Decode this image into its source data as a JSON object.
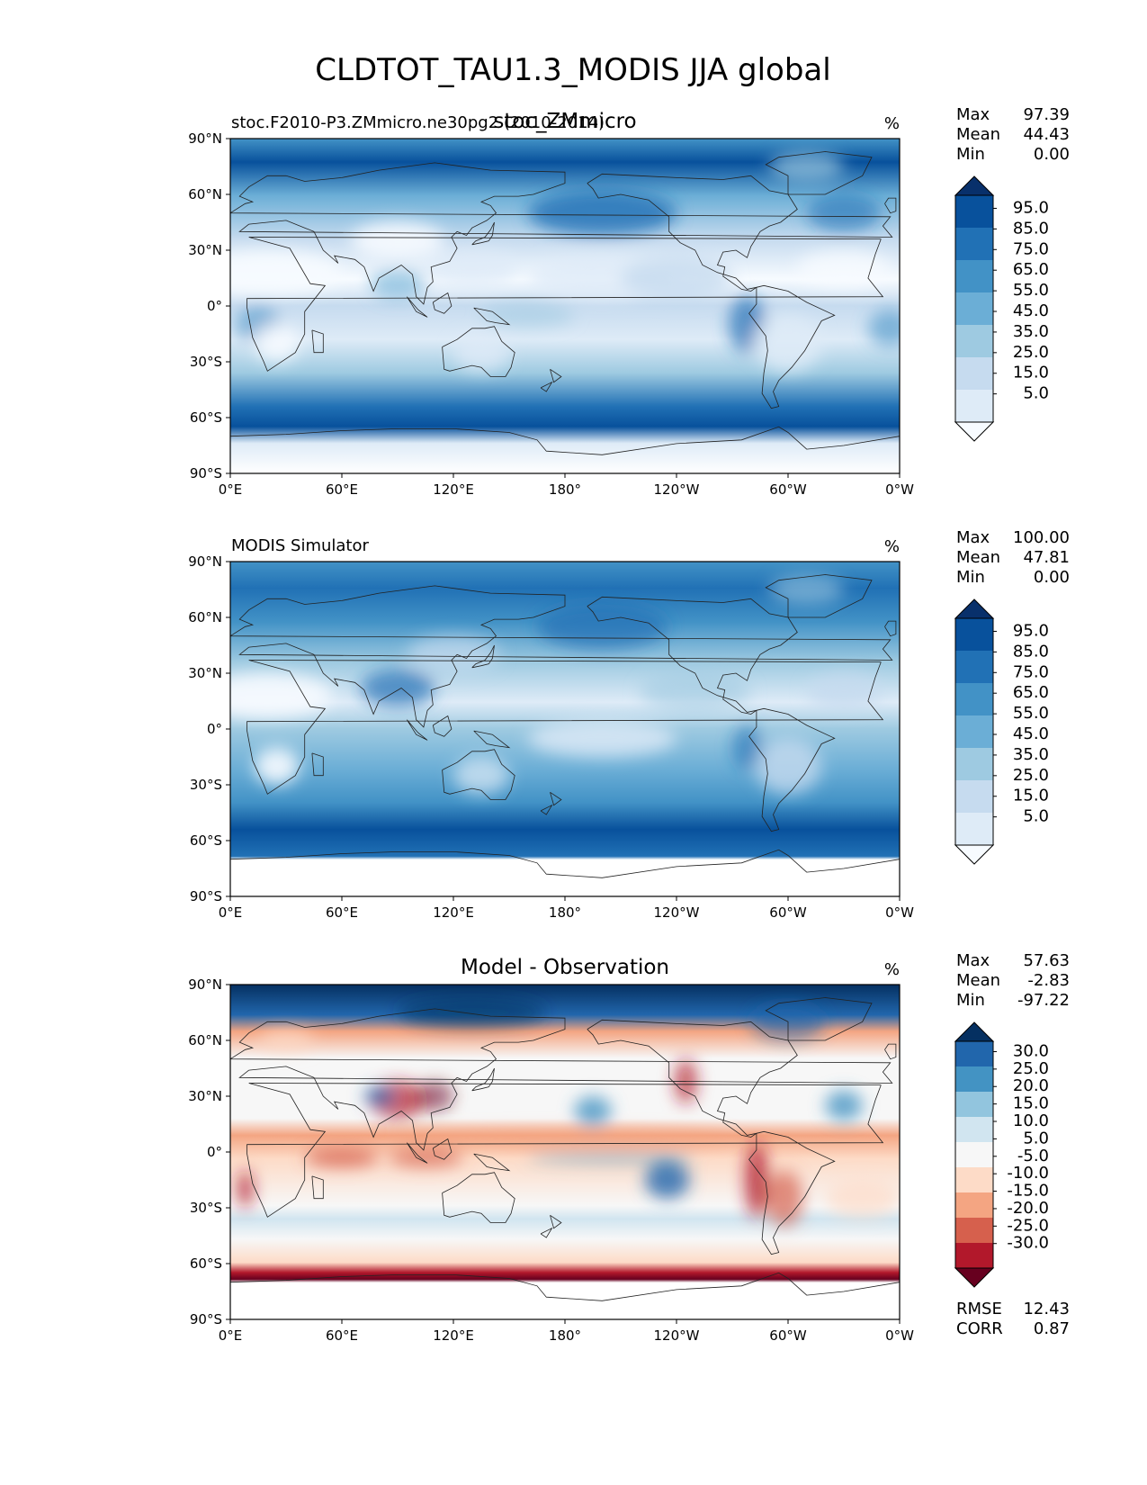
{
  "title": "CLDTOT_TAU1.3_MODIS JJA global",
  "colors": {
    "blues": [
      "#f7fbff",
      "#deebf7",
      "#c6dbef",
      "#9ecae1",
      "#6baed6",
      "#4292c6",
      "#2171b5",
      "#08519c",
      "#08306b"
    ],
    "diverging": [
      "#67001f",
      "#b2182b",
      "#d6604d",
      "#f4a582",
      "#fddbc7",
      "#f7f7f7",
      "#d1e5f0",
      "#92c5de",
      "#4393c3",
      "#2166ac",
      "#053061"
    ],
    "coastline": "#222222"
  },
  "chart_data": [
    {
      "type": "heatmap",
      "panel": "test",
      "left_title": "stoc.F2010-P3.ZMmicro.ne30pg2 (2010-2014)",
      "center_title": "stoc_ZMmicro",
      "units": "%",
      "x_ticks": [
        "0°E",
        "60°E",
        "120°E",
        "180°",
        "120°W",
        "60°W",
        "0°W"
      ],
      "y_ticks": [
        "90°N",
        "60°N",
        "30°N",
        "0°",
        "30°S",
        "60°S",
        "90°S"
      ],
      "xlim": [
        0,
        360
      ],
      "ylim": [
        -90,
        90
      ],
      "stats": {
        "labels": [
          "Max",
          "Mean",
          "Min"
        ],
        "values": [
          "97.39",
          "44.43",
          "0.00"
        ]
      },
      "colorbar": {
        "ticks": [
          "95.0",
          "85.0",
          "75.0",
          "65.0",
          "55.0",
          "45.0",
          "35.0",
          "25.0",
          "15.0",
          "5.0"
        ],
        "extend": "both"
      }
    },
    {
      "type": "heatmap",
      "panel": "reference",
      "left_title": "MODIS Simulator",
      "center_title": "",
      "units": "%",
      "x_ticks": [
        "0°E",
        "60°E",
        "120°E",
        "180°",
        "120°W",
        "60°W",
        "0°W"
      ],
      "y_ticks": [
        "90°N",
        "60°N",
        "30°N",
        "0°",
        "30°S",
        "60°S",
        "90°S"
      ],
      "xlim": [
        0,
        360
      ],
      "ylim": [
        -90,
        90
      ],
      "stats": {
        "labels": [
          "Max",
          "Mean",
          "Min"
        ],
        "values": [
          "100.00",
          "47.81",
          "0.00"
        ]
      },
      "colorbar": {
        "ticks": [
          "95.0",
          "85.0",
          "75.0",
          "65.0",
          "55.0",
          "45.0",
          "35.0",
          "25.0",
          "15.0",
          "5.0"
        ],
        "extend": "both"
      }
    },
    {
      "type": "heatmap",
      "panel": "difference",
      "left_title": "",
      "center_title": "Model - Observation",
      "units": "%",
      "x_ticks": [
        "0°E",
        "60°E",
        "120°E",
        "180°",
        "120°W",
        "60°W",
        "0°W"
      ],
      "y_ticks": [
        "90°N",
        "60°N",
        "30°N",
        "0°",
        "30°S",
        "60°S",
        "90°S"
      ],
      "xlim": [
        0,
        360
      ],
      "ylim": [
        -90,
        90
      ],
      "stats": {
        "labels": [
          "Max",
          "Mean",
          "Min"
        ],
        "values": [
          "57.63",
          "-2.83",
          "-97.22"
        ]
      },
      "colorbar": {
        "ticks": [
          "30.0",
          "25.0",
          "20.0",
          "15.0",
          "10.0",
          "5.0",
          "-5.0",
          "-10.0",
          "-15.0",
          "-20.0",
          "-25.0",
          "-30.0"
        ],
        "extend": "both"
      },
      "metrics": {
        "labels": [
          "RMSE",
          "CORR"
        ],
        "values": [
          "12.43",
          "0.87"
        ]
      }
    }
  ]
}
